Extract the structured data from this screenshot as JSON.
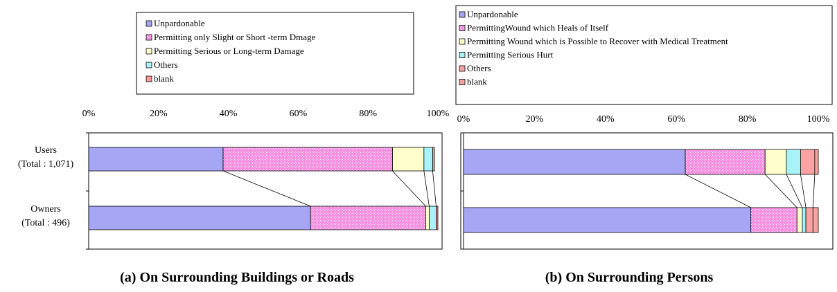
{
  "colors": {
    "series_a": [
      "#a6a6f5",
      "#f58ee0",
      "#ffffcc",
      "#a8f2f8",
      "#f99a9a"
    ],
    "series_b": [
      "#a6a6f5",
      "#f58ee0",
      "#ffffcc",
      "#a8f2f8",
      "#f9a3a3",
      "#f9a3a3"
    ],
    "line": "#000000",
    "background": "#ffffff"
  },
  "chart_data": [
    {
      "type": "bar",
      "orientation": "horizontal",
      "stacked": "percent",
      "caption": "(a) On Surrounding Buildings or Roads",
      "x_tick_labels": [
        "0%",
        "20%",
        "40%",
        "60%",
        "80%",
        "100%"
      ],
      "xlim": [
        0,
        100
      ],
      "categories": [
        "Users\n(Total : 1,071)",
        "Owners\n(Total : 496)"
      ],
      "category_lines": [
        [
          "Users",
          "(Total : 1,071)"
        ],
        [
          "Owners",
          "(Total : 496)"
        ]
      ],
      "legend_position": "top",
      "series": [
        {
          "name": "Unpardonable",
          "values": [
            38.5,
            63.5
          ]
        },
        {
          "name": "Permitting only Slight or Short -term Dmage",
          "values": [
            48.5,
            33.0
          ]
        },
        {
          "name": "Permitting Serious or Long-term Damage",
          "values": [
            9.0,
            1.0
          ]
        },
        {
          "name": "Others",
          "values": [
            2.5,
            2.0
          ]
        },
        {
          "name": "blank",
          "values": [
            0.5,
            0.5
          ]
        }
      ]
    },
    {
      "type": "bar",
      "orientation": "horizontal",
      "stacked": "percent",
      "caption": "(b) On Surrounding Persons",
      "x_tick_labels": [
        "0%",
        "20%",
        "40%",
        "60%",
        "80%",
        "100%"
      ],
      "xlim": [
        0,
        100
      ],
      "categories": [
        "Users",
        "Owners"
      ],
      "legend_position": "top",
      "series": [
        {
          "name": "Unpardonable",
          "values": [
            62.5,
            81.0
          ]
        },
        {
          "name": "PermittingWound which Heals of Itself",
          "values": [
            22.5,
            13.0
          ]
        },
        {
          "name": "Permitting Wound which is Possible to Recover with Medical Treatment",
          "values": [
            6.0,
            1.5
          ]
        },
        {
          "name": "Permitting Serious Hurt",
          "values": [
            4.0,
            1.0
          ]
        },
        {
          "name": "Others",
          "values": [
            4.0,
            2.0
          ]
        },
        {
          "name": "blank",
          "values": [
            1.0,
            1.5
          ]
        }
      ]
    }
  ]
}
